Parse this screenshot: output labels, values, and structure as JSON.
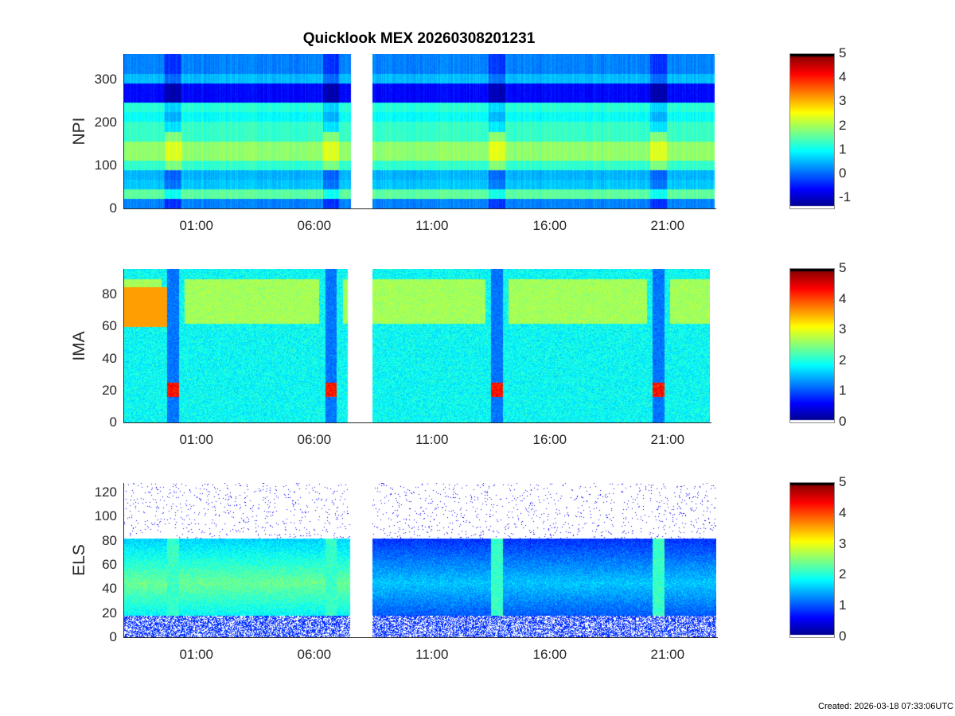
{
  "title": "Quicklook MEX 20260308201231",
  "footer": "Created: 2026-03-18 07:33:06UTC",
  "chart_data": [
    {
      "type": "heatmap",
      "ylabel": "NPI",
      "ylim": [
        0,
        360
      ],
      "yticks": [
        0,
        100,
        200,
        300
      ],
      "xticks": [
        {
          "label": "01:00",
          "h": 1
        },
        {
          "label": "06:00",
          "h": 6
        },
        {
          "label": "11:00",
          "h": 11
        },
        {
          "label": "16:00",
          "h": 16
        },
        {
          "label": "21:00",
          "h": 21
        }
      ],
      "xlim_hours": [
        -2.1,
        23.0
      ],
      "data_gap_hours": [
        7.56,
        8.47
      ],
      "colorbar": {
        "colormap": "jet",
        "clim": [
          -1.43,
          5
        ],
        "ticks": [
          -1,
          0,
          1,
          2,
          3,
          4,
          5
        ]
      }
    },
    {
      "type": "heatmap",
      "ylabel": "IMA",
      "ylim": [
        0,
        96
      ],
      "yticks": [
        0,
        20,
        40,
        60,
        80
      ],
      "xticks": [
        {
          "label": "01:00",
          "h": 1
        },
        {
          "label": "06:00",
          "h": 6
        },
        {
          "label": "11:00",
          "h": 11
        },
        {
          "label": "16:00",
          "h": 16
        },
        {
          "label": "21:00",
          "h": 21
        }
      ],
      "xlim_hours": [
        -2.1,
        23.0
      ],
      "data_gap_hours": [
        7.4,
        8.47
      ],
      "colorbar": {
        "colormap": "jet",
        "clim": [
          0,
          5
        ],
        "ticks": [
          0,
          1,
          2,
          3,
          4,
          5
        ]
      }
    },
    {
      "type": "heatmap",
      "ylabel": "ELS",
      "ylim": [
        0,
        128
      ],
      "yticks": [
        0,
        20,
        40,
        60,
        80,
        100,
        120
      ],
      "xticks": [
        {
          "label": "01:00",
          "h": 1
        },
        {
          "label": "06:00",
          "h": 6
        },
        {
          "label": "11:00",
          "h": 11
        },
        {
          "label": "16:00",
          "h": 16
        },
        {
          "label": "21:00",
          "h": 21
        }
      ],
      "xlim_hours": [
        -2.1,
        23.0
      ],
      "data_gap_hours": [
        7.5,
        8.47
      ],
      "colorbar": {
        "colormap": "jet",
        "clim": [
          0,
          5
        ],
        "ticks": [
          0,
          1,
          2,
          3,
          4,
          5
        ]
      }
    }
  ]
}
